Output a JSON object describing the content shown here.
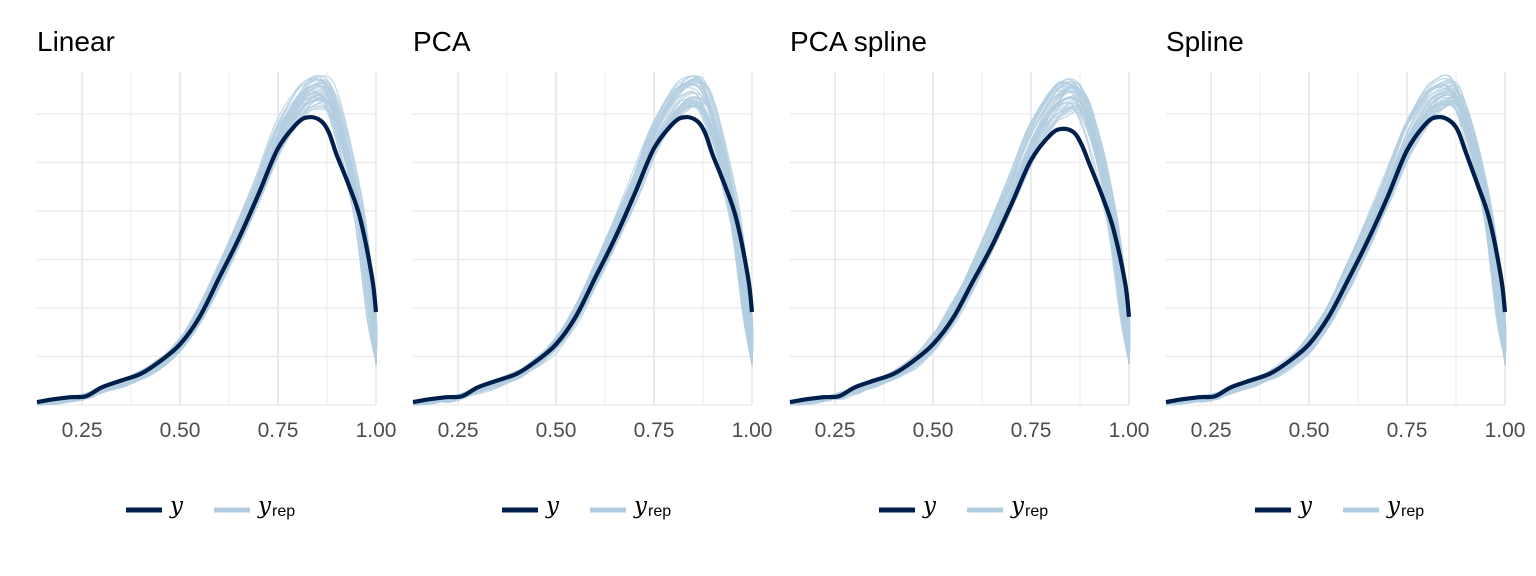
{
  "colors": {
    "y": "#011f4b",
    "yrep": "#b3cde0",
    "grid": "#ebebeb"
  },
  "legend": {
    "y_label": "y",
    "yrep_label": "y",
    "yrep_sub": "rep",
    "placement": "bottom"
  },
  "chart_data": [
    {
      "type": "line",
      "title": "Linear",
      "xlabel": "",
      "ylabel": "",
      "xlim": [
        0.135,
        1.0
      ],
      "ylim": [
        0,
        3.4
      ],
      "x_ticks": [
        0.25,
        0.5,
        0.75,
        1.0
      ],
      "x_tick_labels": [
        "0.25",
        "0.50",
        "0.75",
        "1.00"
      ],
      "grid": true,
      "y_axis_labels": false,
      "series": [
        {
          "name": "y",
          "x": [
            0.135,
            0.18,
            0.22,
            0.26,
            0.3,
            0.35,
            0.4,
            0.45,
            0.5,
            0.55,
            0.6,
            0.65,
            0.7,
            0.75,
            0.8,
            0.83,
            0.86,
            0.88,
            0.9,
            0.93,
            0.96,
            0.99,
            1.0
          ],
          "y": [
            0.03,
            0.06,
            0.08,
            0.09,
            0.18,
            0.25,
            0.32,
            0.45,
            0.62,
            0.9,
            1.3,
            1.7,
            2.15,
            2.62,
            2.88,
            2.94,
            2.9,
            2.78,
            2.55,
            2.25,
            1.9,
            1.3,
            0.95
          ]
        },
        {
          "name": "y_rep",
          "draws": 40,
          "x": [
            0.135,
            0.18,
            0.22,
            0.26,
            0.3,
            0.35,
            0.4,
            0.45,
            0.5,
            0.55,
            0.6,
            0.65,
            0.7,
            0.75,
            0.8,
            0.83,
            0.86,
            0.88,
            0.9,
            0.93,
            0.96,
            0.99,
            1.0
          ],
          "y": [
            0.02,
            0.04,
            0.06,
            0.09,
            0.15,
            0.22,
            0.3,
            0.43,
            0.62,
            0.92,
            1.32,
            1.76,
            2.22,
            2.72,
            3.05,
            3.17,
            3.2,
            3.12,
            2.9,
            2.45,
            1.85,
            0.9,
            0.45
          ]
        }
      ]
    },
    {
      "type": "line",
      "title": "PCA",
      "xlabel": "",
      "ylabel": "",
      "xlim": [
        0.135,
        1.0
      ],
      "ylim": [
        0,
        3.4
      ],
      "x_ticks": [
        0.25,
        0.5,
        0.75,
        1.0
      ],
      "x_tick_labels": [
        "0.25",
        "0.50",
        "0.75",
        "1.00"
      ],
      "grid": true,
      "y_axis_labels": false,
      "series": [
        {
          "name": "y",
          "x": [
            0.135,
            0.18,
            0.22,
            0.26,
            0.3,
            0.35,
            0.4,
            0.45,
            0.5,
            0.55,
            0.6,
            0.65,
            0.7,
            0.75,
            0.8,
            0.83,
            0.86,
            0.88,
            0.9,
            0.93,
            0.96,
            0.99,
            1.0
          ],
          "y": [
            0.03,
            0.06,
            0.08,
            0.09,
            0.18,
            0.25,
            0.32,
            0.45,
            0.62,
            0.9,
            1.3,
            1.7,
            2.15,
            2.62,
            2.88,
            2.94,
            2.9,
            2.78,
            2.55,
            2.25,
            1.9,
            1.3,
            0.95
          ]
        },
        {
          "name": "y_rep",
          "draws": 40,
          "x": [
            0.135,
            0.18,
            0.22,
            0.26,
            0.3,
            0.35,
            0.4,
            0.45,
            0.5,
            0.55,
            0.6,
            0.65,
            0.7,
            0.75,
            0.8,
            0.83,
            0.86,
            0.88,
            0.9,
            0.93,
            0.96,
            0.99,
            1.0
          ],
          "y": [
            0.02,
            0.04,
            0.06,
            0.09,
            0.15,
            0.22,
            0.3,
            0.43,
            0.62,
            0.92,
            1.32,
            1.76,
            2.22,
            2.72,
            3.05,
            3.17,
            3.2,
            3.12,
            2.9,
            2.45,
            1.85,
            0.9,
            0.45
          ]
        }
      ]
    },
    {
      "type": "line",
      "title": "PCA spline",
      "xlabel": "",
      "ylabel": "",
      "xlim": [
        0.135,
        1.0
      ],
      "ylim": [
        0,
        3.4
      ],
      "x_ticks": [
        0.25,
        0.5,
        0.75,
        1.0
      ],
      "x_tick_labels": [
        "0.25",
        "0.50",
        "0.75",
        "1.00"
      ],
      "grid": true,
      "y_axis_labels": false,
      "series": [
        {
          "name": "y",
          "x": [
            0.135,
            0.18,
            0.22,
            0.26,
            0.3,
            0.35,
            0.4,
            0.45,
            0.5,
            0.55,
            0.6,
            0.65,
            0.7,
            0.75,
            0.8,
            0.83,
            0.86,
            0.88,
            0.9,
            0.93,
            0.96,
            0.99,
            1.0
          ],
          "y": [
            0.03,
            0.06,
            0.08,
            0.09,
            0.18,
            0.25,
            0.32,
            0.45,
            0.62,
            0.88,
            1.25,
            1.62,
            2.05,
            2.5,
            2.76,
            2.82,
            2.78,
            2.65,
            2.45,
            2.15,
            1.8,
            1.25,
            0.9
          ]
        },
        {
          "name": "y_rep",
          "draws": 40,
          "x": [
            0.135,
            0.18,
            0.22,
            0.26,
            0.3,
            0.35,
            0.4,
            0.45,
            0.5,
            0.55,
            0.6,
            0.65,
            0.7,
            0.75,
            0.8,
            0.83,
            0.86,
            0.88,
            0.9,
            0.93,
            0.96,
            0.99,
            1.0
          ],
          "y": [
            0.02,
            0.04,
            0.06,
            0.09,
            0.15,
            0.22,
            0.3,
            0.43,
            0.62,
            0.92,
            1.3,
            1.72,
            2.18,
            2.66,
            3.0,
            3.12,
            3.15,
            3.05,
            2.85,
            2.4,
            1.8,
            0.9,
            0.45
          ]
        }
      ]
    },
    {
      "type": "line",
      "title": "Spline",
      "xlabel": "",
      "ylabel": "",
      "xlim": [
        0.135,
        1.0
      ],
      "ylim": [
        0,
        3.4
      ],
      "x_ticks": [
        0.25,
        0.5,
        0.75,
        1.0
      ],
      "x_tick_labels": [
        "0.25",
        "0.50",
        "0.75",
        "1.00"
      ],
      "grid": true,
      "y_axis_labels": false,
      "series": [
        {
          "name": "y",
          "x": [
            0.135,
            0.18,
            0.22,
            0.26,
            0.3,
            0.35,
            0.4,
            0.45,
            0.5,
            0.55,
            0.6,
            0.65,
            0.7,
            0.75,
            0.8,
            0.83,
            0.86,
            0.88,
            0.9,
            0.93,
            0.96,
            0.99,
            1.0
          ],
          "y": [
            0.03,
            0.06,
            0.08,
            0.09,
            0.18,
            0.25,
            0.32,
            0.45,
            0.62,
            0.9,
            1.28,
            1.68,
            2.12,
            2.6,
            2.88,
            2.94,
            2.9,
            2.8,
            2.58,
            2.25,
            1.9,
            1.3,
            0.95
          ]
        },
        {
          "name": "y_rep",
          "draws": 40,
          "x": [
            0.135,
            0.18,
            0.22,
            0.26,
            0.3,
            0.35,
            0.4,
            0.45,
            0.5,
            0.55,
            0.6,
            0.65,
            0.7,
            0.75,
            0.8,
            0.83,
            0.86,
            0.88,
            0.9,
            0.93,
            0.96,
            0.99,
            1.0
          ],
          "y": [
            0.02,
            0.04,
            0.06,
            0.09,
            0.15,
            0.22,
            0.3,
            0.43,
            0.62,
            0.92,
            1.32,
            1.76,
            2.22,
            2.72,
            3.05,
            3.17,
            3.2,
            3.12,
            2.9,
            2.45,
            1.85,
            0.9,
            0.45
          ]
        }
      ]
    }
  ]
}
